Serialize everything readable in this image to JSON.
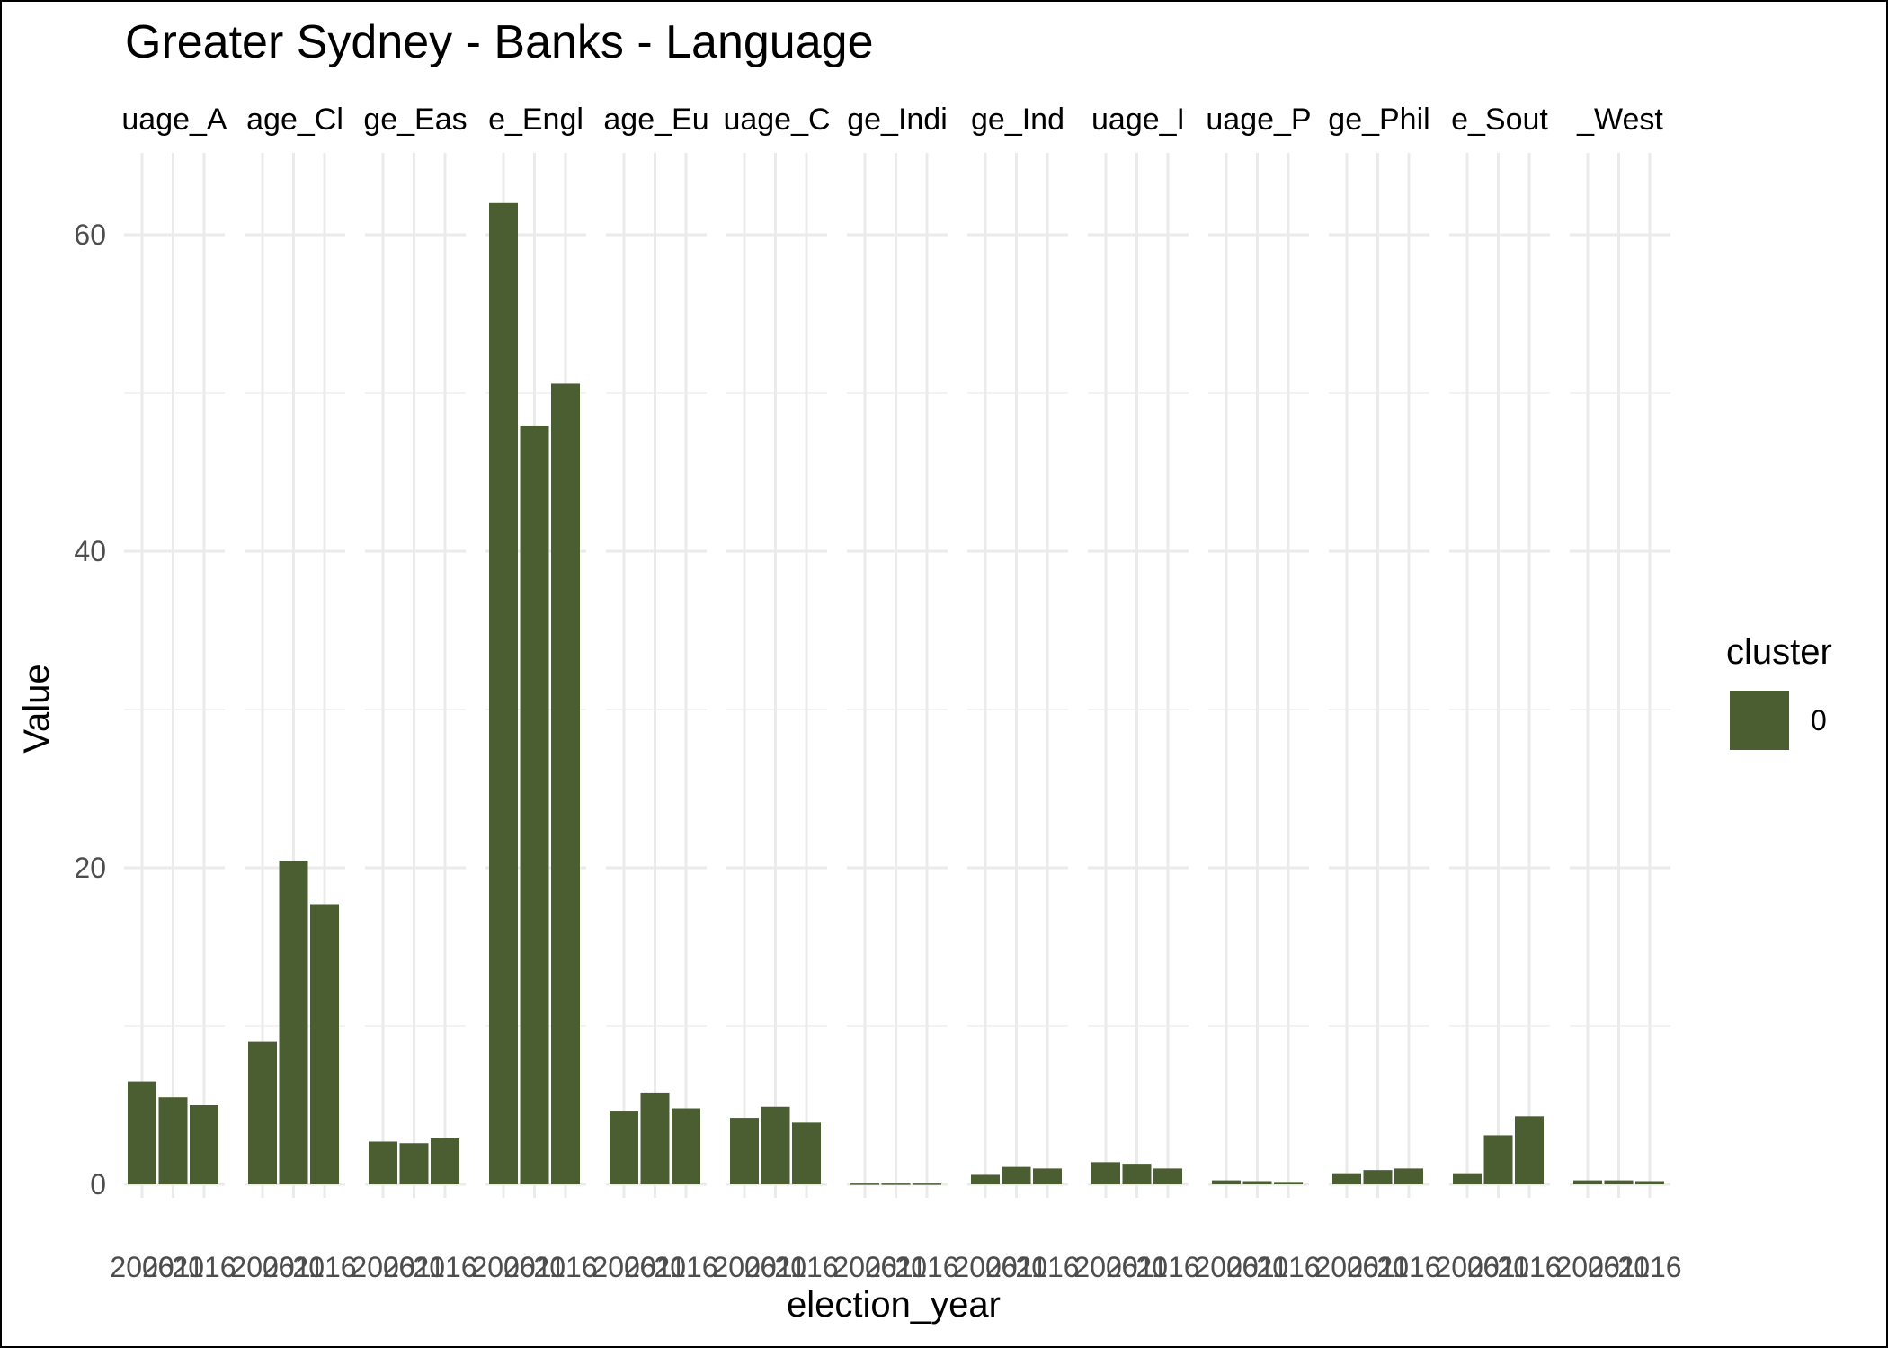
{
  "chart_data": {
    "type": "bar",
    "title": "Greater Sydney - Banks - Language",
    "xlabel": "election_year",
    "ylabel": "Value",
    "ylim": [
      0,
      64
    ],
    "yticks": [
      0,
      20,
      40,
      60
    ],
    "grid": true,
    "legend": {
      "title": "cluster",
      "position": "right",
      "entries": [
        {
          "label": "0",
          "color": "#4a5e32"
        }
      ]
    },
    "bar_color": "#4a5e32",
    "categories": [
      "2006",
      "2011",
      "2016"
    ],
    "x_tick_labels": [
      "2006",
      "2011",
      "2016"
    ],
    "facets": [
      {
        "strip": "uage_A",
        "values": [
          6.5,
          5.5,
          5.0
        ]
      },
      {
        "strip": "age_Cl",
        "values": [
          9.0,
          20.4,
          17.7
        ]
      },
      {
        "strip": "ge_Eas",
        "values": [
          2.7,
          2.6,
          2.9
        ]
      },
      {
        "strip": "e_Engl",
        "values": [
          62.0,
          47.9,
          50.6
        ]
      },
      {
        "strip": "age_Eu",
        "values": [
          4.6,
          5.8,
          4.8
        ]
      },
      {
        "strip": "uage_C",
        "values": [
          4.2,
          4.9,
          3.9
        ]
      },
      {
        "strip": "ge_Indi",
        "values": [
          0.05,
          0.05,
          0.05
        ]
      },
      {
        "strip": "ge_Ind",
        "values": [
          0.6,
          1.1,
          1.0
        ]
      },
      {
        "strip": "uage_I",
        "values": [
          1.4,
          1.3,
          1.0
        ]
      },
      {
        "strip": "uage_P",
        "values": [
          0.25,
          0.2,
          0.15
        ]
      },
      {
        "strip": "ge_Phil",
        "values": [
          0.7,
          0.9,
          1.0
        ]
      },
      {
        "strip": "e_Sout",
        "values": [
          0.7,
          3.1,
          4.3
        ]
      },
      {
        "strip": "_West",
        "values": [
          0.25,
          0.25,
          0.2
        ]
      }
    ]
  }
}
